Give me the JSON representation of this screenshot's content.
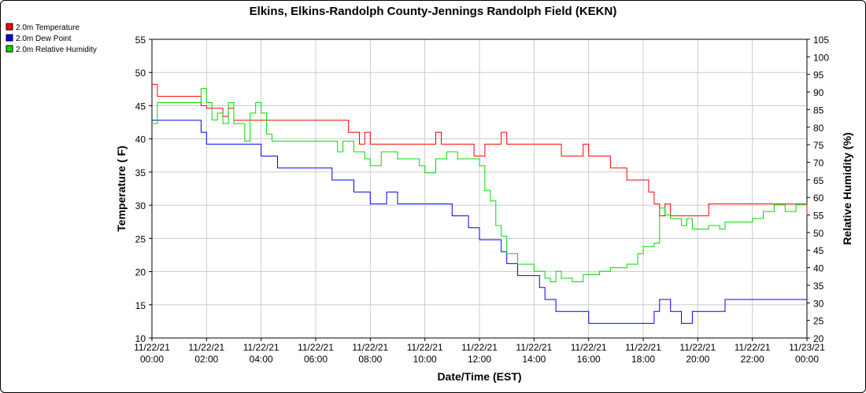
{
  "chart_data": {
    "type": "line",
    "title": "Elkins, Elkins-Randolph County-Jennings Randolph Field (KEKN)",
    "xlabel": "Date/Time (EST)",
    "ylabel_left": "Temperature ( F)",
    "ylabel_right": "Relative Humidity (%)",
    "x_range_hours": [
      0,
      24
    ],
    "ylim_left": [
      10,
      55
    ],
    "ylim_right": [
      20,
      105
    ],
    "yticks_left": [
      "10",
      "15",
      "20",
      "25",
      "30",
      "35",
      "40",
      "45",
      "50",
      "55"
    ],
    "yticks_right": [
      "20",
      "25",
      "30",
      "35",
      "40",
      "45",
      "50",
      "55",
      "60",
      "65",
      "70",
      "75",
      "80",
      "85",
      "90",
      "95",
      "100",
      "105"
    ],
    "xticks": [
      {
        "date": "11/22/21",
        "time": "00:00"
      },
      {
        "date": "11/22/21",
        "time": "02:00"
      },
      {
        "date": "11/22/21",
        "time": "04:00"
      },
      {
        "date": "11/22/21",
        "time": "06:00"
      },
      {
        "date": "11/22/21",
        "time": "08:00"
      },
      {
        "date": "11/22/21",
        "time": "10:00"
      },
      {
        "date": "11/22/21",
        "time": "12:00"
      },
      {
        "date": "11/22/21",
        "time": "14:00"
      },
      {
        "date": "11/22/21",
        "time": "16:00"
      },
      {
        "date": "11/22/21",
        "time": "18:00"
      },
      {
        "date": "11/22/21",
        "time": "20:00"
      },
      {
        "date": "11/22/21",
        "time": "22:00"
      },
      {
        "date": "11/23/21",
        "time": "00:00"
      }
    ],
    "grid": true,
    "legend_position": "top-left",
    "series": [
      {
        "name": "2.0m Temperature",
        "color": "#ff0000",
        "axis": "left",
        "x_hours": [
          0,
          0.2,
          0.3,
          1.5,
          1.8,
          2.0,
          2.4,
          2.6,
          2.8,
          3.0,
          3.2,
          3.4,
          3.6,
          4.0,
          6.0,
          6.2,
          7.0,
          7.2,
          7.6,
          7.8,
          8.0,
          9.8,
          10.0,
          10.4,
          10.6,
          11.0,
          11.8,
          12.0,
          12.2,
          12.6,
          12.8,
          13.0,
          14.0,
          14.8,
          15.0,
          15.6,
          15.8,
          16.0,
          16.6,
          16.8,
          17.4,
          17.6,
          18.0,
          18.2,
          18.4,
          18.6,
          18.8,
          19.0,
          20.0,
          20.4,
          20.6,
          21.2,
          22.0,
          22.6,
          23.0,
          24.0
        ],
        "values": [
          48.2,
          46.4,
          46.4,
          46.4,
          45.0,
          44.6,
          44.6,
          43.4,
          44.6,
          42.8,
          42.8,
          42.8,
          42.8,
          42.8,
          42.8,
          42.8,
          42.8,
          41.0,
          39.2,
          41.0,
          39.2,
          39.2,
          39.2,
          41.0,
          39.2,
          39.2,
          37.4,
          37.4,
          39.2,
          39.2,
          41.0,
          39.2,
          39.2,
          39.2,
          37.4,
          37.4,
          39.2,
          37.4,
          37.4,
          35.6,
          33.8,
          33.8,
          33.8,
          32.0,
          30.2,
          28.4,
          30.2,
          28.4,
          28.4,
          30.2,
          30.2,
          30.2,
          30.2,
          30.2,
          30.2,
          28.4
        ]
      },
      {
        "name": "2.0m Dew Point",
        "color": "#0000ff",
        "axis": "left",
        "x_hours": [
          0,
          0.8,
          1.4,
          1.8,
          2.0,
          2.4,
          2.8,
          3.4,
          4.0,
          4.4,
          4.6,
          5.0,
          6.0,
          6.6,
          7.0,
          7.4,
          8.0,
          8.6,
          9.0,
          9.4,
          10.0,
          10.6,
          11.0,
          11.6,
          11.8,
          12.0,
          12.4,
          12.6,
          12.8,
          13.0,
          13.4,
          13.8,
          14.0,
          14.2,
          14.4,
          14.8,
          15.0,
          15.6,
          16.0,
          17.0,
          17.4,
          17.8,
          18.0,
          18.4,
          18.6,
          19.0,
          19.4,
          19.6,
          19.8,
          20.0,
          20.6,
          21.0,
          22.0,
          23.0,
          24.0
        ],
        "values": [
          42.8,
          42.8,
          42.8,
          41.0,
          39.2,
          39.2,
          39.2,
          39.2,
          37.4,
          37.4,
          35.6,
          35.6,
          35.6,
          33.8,
          33.8,
          32.0,
          30.2,
          32.0,
          30.2,
          30.2,
          30.2,
          30.2,
          28.4,
          26.6,
          26.6,
          24.8,
          24.8,
          24.8,
          23.0,
          21.2,
          19.4,
          19.4,
          19.4,
          17.6,
          15.8,
          14.0,
          14.0,
          14.0,
          12.2,
          12.2,
          12.2,
          12.2,
          12.2,
          14.0,
          15.8,
          14.0,
          12.2,
          12.2,
          14.0,
          14.0,
          14.0,
          15.8,
          15.8,
          15.8,
          15.8
        ]
      },
      {
        "name": "2.0m Relative Humidity",
        "color": "#00dd00",
        "axis": "right",
        "x_hours": [
          0,
          0.2,
          0.6,
          1.0,
          1.6,
          1.8,
          2.0,
          2.2,
          2.4,
          2.6,
          2.8,
          3.0,
          3.2,
          3.4,
          3.6,
          3.8,
          4.0,
          4.2,
          4.4,
          4.6,
          5.0,
          6.0,
          6.6,
          6.8,
          7.0,
          7.4,
          7.8,
          8.0,
          8.4,
          8.6,
          9.0,
          9.4,
          9.8,
          10.0,
          10.4,
          10.8,
          11.0,
          11.2,
          11.6,
          12.0,
          12.2,
          12.4,
          12.6,
          12.8,
          13.0,
          13.4,
          13.8,
          14.0,
          14.4,
          14.6,
          14.8,
          15.0,
          15.4,
          15.8,
          16.0,
          16.4,
          16.8,
          17.0,
          17.4,
          17.8,
          18.0,
          18.4,
          18.6,
          18.8,
          19.0,
          19.4,
          19.6,
          19.8,
          20.0,
          20.4,
          20.8,
          21.0,
          21.6,
          22.0,
          22.4,
          22.8,
          23.2,
          23.6,
          24.0
        ],
        "values": [
          81,
          87,
          87,
          87,
          87,
          91,
          87,
          82,
          84,
          81,
          87,
          81,
          81,
          76,
          84,
          87,
          84,
          78,
          76,
          76,
          76,
          76,
          76,
          73,
          76,
          73,
          71,
          69,
          73,
          73,
          71,
          71,
          69,
          67,
          71,
          73,
          73,
          71,
          71,
          69,
          62,
          59,
          52,
          49,
          44,
          41,
          41,
          39,
          37,
          36,
          39,
          37,
          36,
          38,
          38,
          39,
          40,
          40,
          41,
          44,
          46,
          47,
          57,
          55,
          54,
          52,
          54,
          51,
          51,
          52,
          51,
          53,
          53,
          54,
          56,
          58,
          56,
          58,
          58
        ]
      }
    ]
  }
}
